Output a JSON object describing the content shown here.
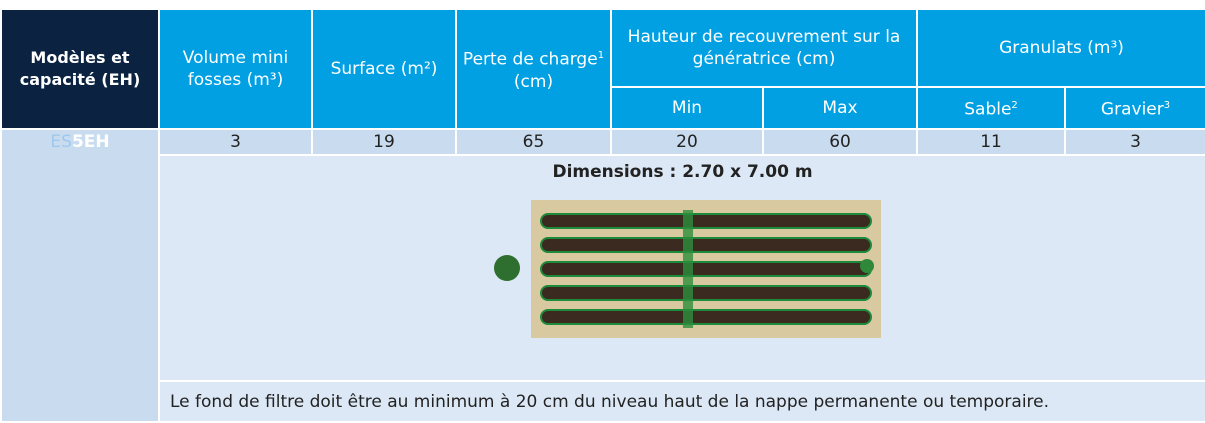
{
  "table": {
    "header": {
      "model": "Modèles et capacité (EH)",
      "volume": "Volume mini fosses (m³)",
      "surface": "Surface (m²)",
      "perte": {
        "text": "Perte de charge",
        "sup": "1",
        "unit": "(cm)"
      },
      "hauteur": "Hauteur de recouvrement sur la génératrice (cm)",
      "min": "Min",
      "max": "Max",
      "granulats": "Granulats (m³)",
      "sable": {
        "text": "Sable",
        "sup": "2"
      },
      "gravier": {
        "text": "Gravier",
        "sup": "3"
      }
    },
    "row": {
      "model_prefix": "ES",
      "model_bold": "5EH",
      "values": [
        "3",
        "19",
        "65",
        "20",
        "60",
        "11",
        "3"
      ]
    },
    "dimensions": "Dimensions : 2.70 x 7.00 m",
    "note": "Le fond de filtre doit être au minimum à 20 cm du niveau haut de la nappe permanente ou temporaire."
  }
}
